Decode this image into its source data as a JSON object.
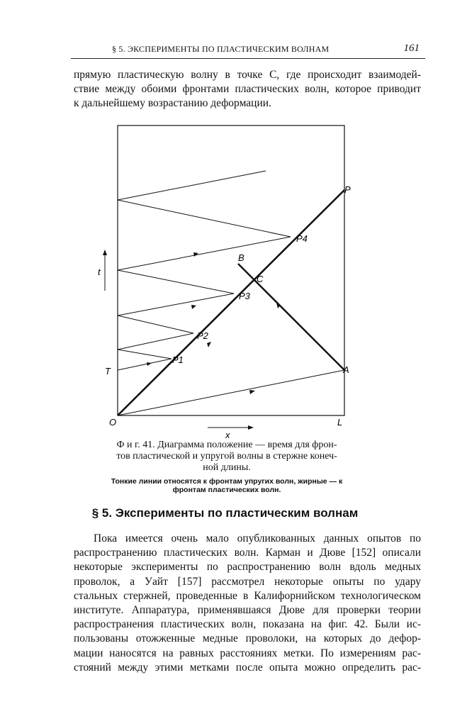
{
  "header": {
    "title": "§ 5. ЭКСПЕРИМЕНТЫ ПО ПЛАСТИЧЕСКИМ ВОЛНАМ",
    "page_number": "161"
  },
  "intro_lines": [
    "прямую пластическую волну в точке C, где происходит взаимодей-",
    "ствие между обоими фронтами пластических волн, которое приводит",
    "к дальнейшему возрастанию деформации."
  ],
  "figure": {
    "labels": {
      "O": "O",
      "L": "L",
      "A": "A",
      "P": "P",
      "T": "T",
      "B": "B",
      "C": "C",
      "P1": "P1",
      "P2": "P2",
      "P3": "P3",
      "P4": "P4",
      "t": "t",
      "x": "x"
    },
    "caption_lines": [
      "Ф и г. 41. Диаграмма положение — время для фрон-",
      "тов пластической и упругой волны в стержне конеч-",
      "ной длины."
    ],
    "note_lines": [
      "Тонкие линии относятся к фронтам упругих волн, жирные — к",
      "фронтам пластических волн."
    ]
  },
  "section_title": "§ 5. Эксперименты по пластическим волнам",
  "body_lines": [
    "Пока имеется очень мало опубликованных данных опытов по",
    "распространению пластических волн. Карман и Дюве [152] описали",
    "некоторые эксперименты по распространению волн вдоль медных",
    "проволок, а Уайт [157] рассмотрел некоторые опыты по удару",
    "стальных стержней, проведенные в Калифорнийском технологическом",
    "институте. Аппаратура, применявшаяся Дюве для проверки теории",
    "распространения пластических волн, показана на фиг. 42. Были ис-",
    "пользованы отожженные медные проволоки, на которых до дефор-",
    "мации наносятся на равных расстояниях метки. По измерениям рас-",
    "стояний между этими метками после опыта можно определить рас-"
  ]
}
